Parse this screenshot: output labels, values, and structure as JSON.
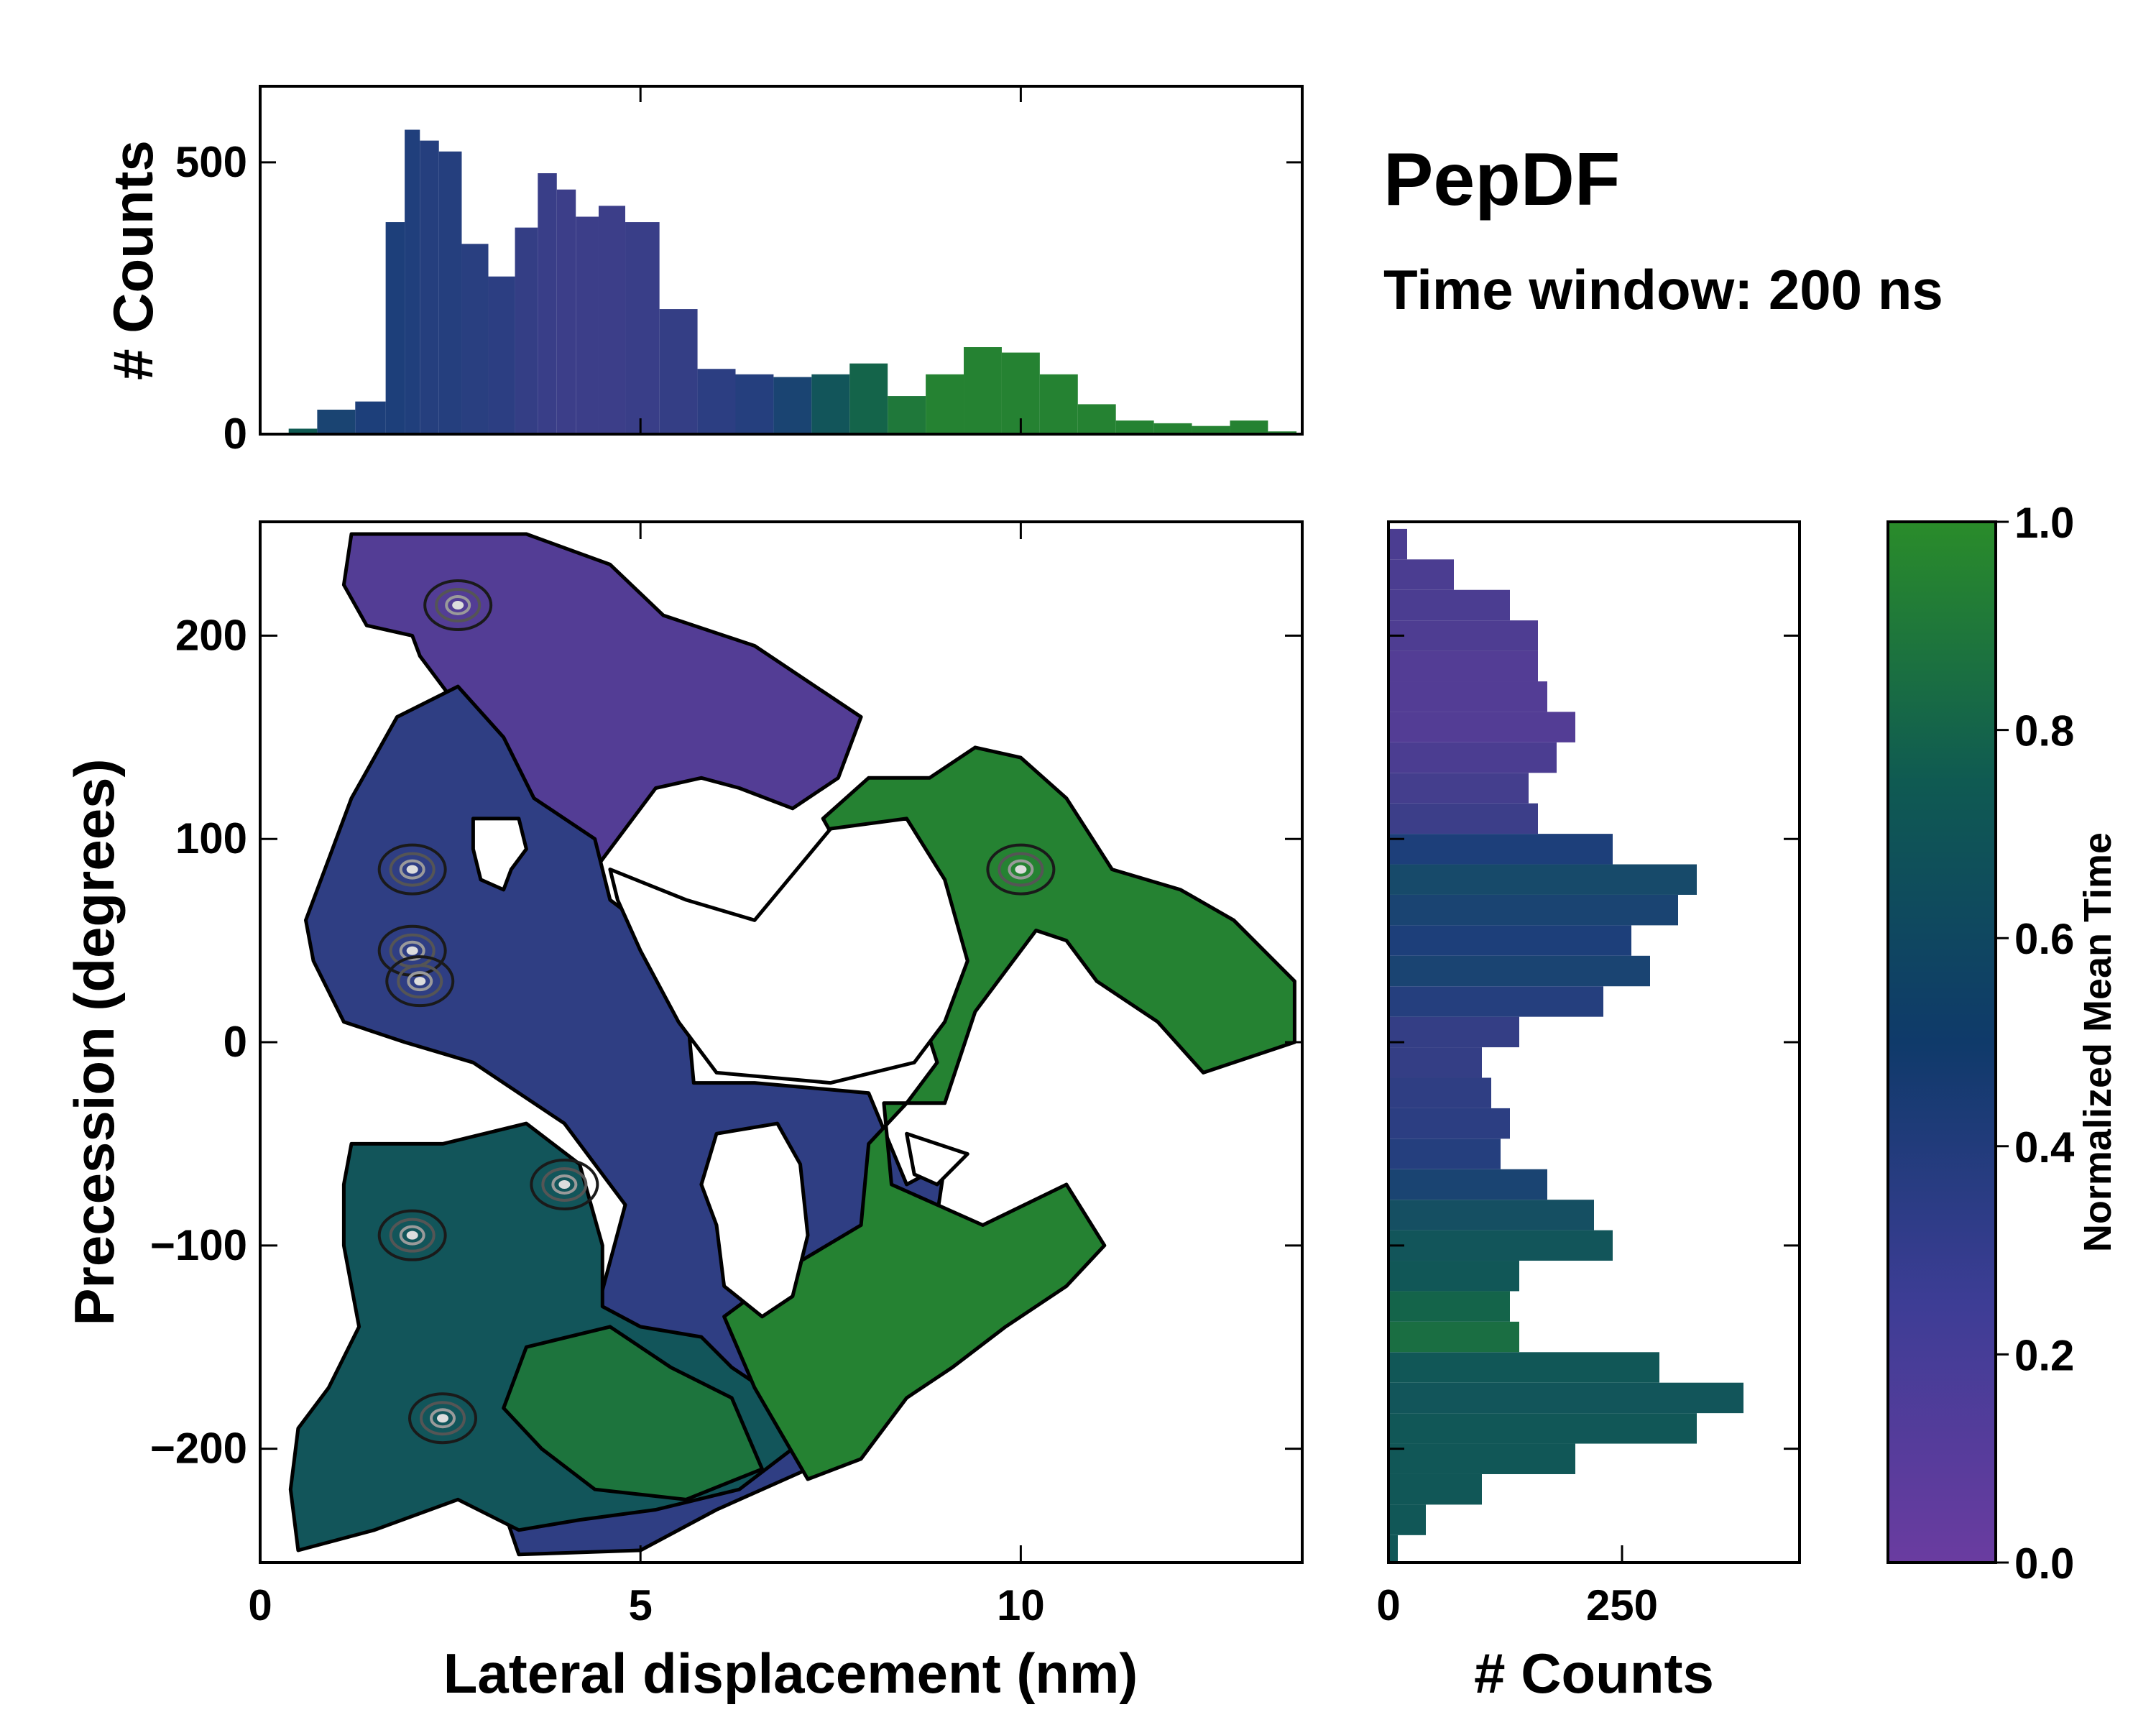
{
  "colors": {
    "purple": "#6a3ca0",
    "blue": "#1d3f7a",
    "teal": "#0f5a52",
    "green": "#2a8c2a"
  },
  "header": {
    "title": "PepDF",
    "subtitle": "Time window: 200 ns"
  },
  "chart_data": [
    {
      "type": "bar",
      "name": "top-histogram",
      "ylabel": "# Counts",
      "xlim": [
        0,
        13.7
      ],
      "ylim": [
        0,
        640
      ],
      "x_ticks": [
        0,
        5,
        10
      ],
      "y_ticks": [
        0,
        500
      ],
      "y_tick_labels": [
        "0",
        "500"
      ],
      "x": [
        0.5,
        1.0,
        1.5,
        1.8,
        2.0,
        2.2,
        2.5,
        2.8,
        3.2,
        3.5,
        3.8,
        4.0,
        4.3,
        4.6,
        5.0,
        5.5,
        6.0,
        6.5,
        7.0,
        7.5,
        8.0,
        8.5,
        9.0,
        9.5,
        10.0,
        10.5,
        11.0,
        11.5,
        12.0,
        12.5,
        13.0,
        13.5
      ],
      "values": [
        10,
        45,
        60,
        390,
        560,
        540,
        520,
        350,
        290,
        380,
        480,
        450,
        400,
        420,
        390,
        230,
        120,
        110,
        105,
        110,
        130,
        70,
        110,
        160,
        150,
        110,
        55,
        25,
        20,
        15,
        25,
        5
      ],
      "normalized_time": [
        0.75,
        0.55,
        0.5,
        0.5,
        0.48,
        0.45,
        0.45,
        0.42,
        0.4,
        0.35,
        0.32,
        0.3,
        0.3,
        0.3,
        0.32,
        0.35,
        0.4,
        0.45,
        0.55,
        0.7,
        0.8,
        0.9,
        0.95,
        0.95,
        0.95,
        0.95,
        0.95,
        0.95,
        0.95,
        0.95,
        0.95,
        0.95
      ]
    },
    {
      "type": "heatmap",
      "name": "main-pmf",
      "xlabel": "Lateral displacement (nm)",
      "ylabel": "Precession (degrees)",
      "xlim": [
        0,
        13.7
      ],
      "ylim": [
        -256,
        256
      ],
      "x_ticks": [
        0,
        5,
        10
      ],
      "y_ticks": [
        -200,
        -100,
        0,
        100,
        200
      ],
      "y_tick_labels": [
        "−200",
        "−100",
        "0",
        "100",
        "200"
      ],
      "regions": [
        {
          "name": "upper-left-purple",
          "normalized_time": 0.15,
          "polygon": [
            [
              1.2,
              250
            ],
            [
              2.5,
              250
            ],
            [
              3.5,
              250
            ],
            [
              4.6,
              235
            ],
            [
              5.3,
              210
            ],
            [
              6.5,
              195
            ],
            [
              7.9,
              160
            ],
            [
              7.6,
              130
            ],
            [
              7.0,
              115
            ],
            [
              6.3,
              125
            ],
            [
              5.8,
              130
            ],
            [
              5.2,
              125
            ],
            [
              4.7,
              100
            ],
            [
              4.4,
              85
            ],
            [
              4.0,
              70
            ],
            [
              3.6,
              65
            ],
            [
              3.1,
              105
            ],
            [
              3.0,
              140
            ],
            [
              2.5,
              170
            ],
            [
              2.1,
              190
            ],
            [
              2.0,
              200
            ],
            [
              1.4,
              205
            ],
            [
              1.1,
              225
            ]
          ]
        },
        {
          "name": "left-blue-band",
          "normalized_time": 0.38,
          "polygon": [
            [
              1.8,
              160
            ],
            [
              2.6,
              175
            ],
            [
              3.2,
              150
            ],
            [
              3.6,
              120
            ],
            [
              4.4,
              100
            ],
            [
              4.6,
              70
            ],
            [
              5.3,
              50
            ],
            [
              5.6,
              20
            ],
            [
              5.7,
              -20
            ],
            [
              6.5,
              -20
            ],
            [
              8.0,
              -25
            ],
            [
              8.5,
              -70
            ],
            [
              9.0,
              -60
            ],
            [
              8.8,
              -110
            ],
            [
              8.9,
              -150
            ],
            [
              8.5,
              -175
            ],
            [
              7.5,
              -205
            ],
            [
              6.0,
              -230
            ],
            [
              5.0,
              -250
            ],
            [
              3.4,
              -252
            ],
            [
              3.2,
              -230
            ],
            [
              3.8,
              -210
            ],
            [
              4.3,
              -150
            ],
            [
              4.8,
              -80
            ],
            [
              4.0,
              -40
            ],
            [
              2.8,
              -10
            ],
            [
              1.9,
              0
            ],
            [
              1.1,
              10
            ],
            [
              0.7,
              40
            ],
            [
              0.6,
              60
            ],
            [
              0.9,
              90
            ],
            [
              1.2,
              120
            ],
            [
              1.5,
              140
            ]
          ]
        },
        {
          "name": "lower-left-teal",
          "normalized_time": 0.7,
          "polygon": [
            [
              1.2,
              -50
            ],
            [
              2.4,
              -50
            ],
            [
              3.5,
              -40
            ],
            [
              4.2,
              -60
            ],
            [
              4.5,
              -100
            ],
            [
              4.5,
              -130
            ],
            [
              5.0,
              -140
            ],
            [
              5.8,
              -145
            ],
            [
              6.2,
              -160
            ],
            [
              6.8,
              -175
            ],
            [
              7.0,
              -200
            ],
            [
              6.3,
              -220
            ],
            [
              5.2,
              -230
            ],
            [
              4.2,
              -235
            ],
            [
              3.4,
              -240
            ],
            [
              2.6,
              -225
            ],
            [
              1.5,
              -240
            ],
            [
              0.5,
              -250
            ],
            [
              0.4,
              -220
            ],
            [
              0.5,
              -190
            ],
            [
              0.9,
              -170
            ],
            [
              1.3,
              -140
            ],
            [
              1.1,
              -100
            ],
            [
              1.1,
              -70
            ]
          ]
        },
        {
          "name": "right-green-island",
          "normalized_time": 0.95,
          "polygon": [
            [
              8.0,
              130
            ],
            [
              8.8,
              130
            ],
            [
              9.4,
              145
            ],
            [
              10.0,
              140
            ],
            [
              10.6,
              120
            ],
            [
              11.2,
              85
            ],
            [
              12.1,
              75
            ],
            [
              12.8,
              60
            ],
            [
              13.6,
              30
            ],
            [
              13.6,
              0
            ],
            [
              12.4,
              -15
            ],
            [
              11.8,
              10
            ],
            [
              11.0,
              30
            ],
            [
              10.6,
              50
            ],
            [
              10.2,
              55
            ],
            [
              9.8,
              35
            ],
            [
              9.4,
              15
            ],
            [
              9.0,
              -30
            ],
            [
              8.2,
              -30
            ],
            [
              8.3,
              -70
            ],
            [
              9.5,
              -90
            ],
            [
              10.6,
              -70
            ],
            [
              11.1,
              -100
            ],
            [
              10.6,
              -120
            ],
            [
              9.8,
              -140
            ],
            [
              9.1,
              -160
            ],
            [
              8.5,
              -175
            ],
            [
              7.9,
              -205
            ],
            [
              7.2,
              -215
            ],
            [
              6.5,
              -170
            ],
            [
              6.1,
              -135
            ],
            [
              7.0,
              -110
            ],
            [
              7.9,
              -90
            ],
            [
              8.0,
              -50
            ],
            [
              8.5,
              -30
            ],
            [
              8.9,
              -10
            ],
            [
              8.6,
              25
            ],
            [
              8.3,
              60
            ],
            [
              7.7,
              90
            ],
            [
              7.4,
              110
            ]
          ]
        },
        {
          "name": "lower-green-patch",
          "normalized_time": 0.88,
          "polygon": [
            [
              3.5,
              -150
            ],
            [
              4.6,
              -140
            ],
            [
              5.4,
              -160
            ],
            [
              6.2,
              -175
            ],
            [
              6.6,
              -210
            ],
            [
              5.6,
              -225
            ],
            [
              4.4,
              -220
            ],
            [
              3.7,
              -200
            ],
            [
              3.2,
              -180
            ]
          ]
        }
      ],
      "holes": [
        [
          [
            2.8,
            110
          ],
          [
            3.4,
            110
          ],
          [
            3.5,
            95
          ],
          [
            3.3,
            85
          ],
          [
            3.2,
            75
          ],
          [
            2.9,
            80
          ],
          [
            2.8,
            95
          ]
        ],
        [
          [
            4.6,
            85
          ],
          [
            5.6,
            70
          ],
          [
            6.5,
            60
          ],
          [
            7.5,
            105
          ],
          [
            8.5,
            110
          ],
          [
            9.0,
            80
          ],
          [
            9.3,
            40
          ],
          [
            9.0,
            10
          ],
          [
            8.6,
            -10
          ],
          [
            7.5,
            -20
          ],
          [
            6.0,
            -15
          ],
          [
            5.5,
            10
          ],
          [
            5.0,
            45
          ],
          [
            4.7,
            70
          ]
        ],
        [
          [
            6.0,
            -45
          ],
          [
            6.8,
            -40
          ],
          [
            7.1,
            -60
          ],
          [
            7.2,
            -95
          ],
          [
            7.0,
            -125
          ],
          [
            6.6,
            -135
          ],
          [
            6.1,
            -120
          ],
          [
            6.0,
            -90
          ],
          [
            5.8,
            -70
          ]
        ],
        [
          [
            8.5,
            -45
          ],
          [
            9.3,
            -55
          ],
          [
            8.9,
            -70
          ],
          [
            8.6,
            -65
          ]
        ]
      ],
      "minima": [
        [
          2.0,
          85
        ],
        [
          2.0,
          45
        ],
        [
          2.1,
          30
        ],
        [
          2.4,
          -185
        ],
        [
          2.6,
          215
        ],
        [
          10.0,
          85
        ],
        [
          4.0,
          -70
        ],
        [
          2.0,
          -95
        ]
      ]
    },
    {
      "type": "bar",
      "orientation": "horizontal",
      "name": "right-histogram",
      "xlabel": "# Counts",
      "xlim": [
        0,
        440
      ],
      "x_ticks": [
        0,
        250
      ],
      "x_tick_labels": [
        "0",
        "250"
      ],
      "ylim": [
        -256,
        256
      ],
      "y": [
        -250,
        -235,
        -220,
        -205,
        -190,
        -175,
        -160,
        -145,
        -130,
        -115,
        -100,
        -85,
        -70,
        -55,
        -40,
        -25,
        -10,
        5,
        20,
        35,
        50,
        65,
        80,
        95,
        110,
        125,
        140,
        155,
        170,
        185,
        200,
        215,
        230,
        245
      ],
      "values": [
        10,
        40,
        100,
        200,
        330,
        380,
        290,
        140,
        130,
        140,
        240,
        220,
        170,
        120,
        130,
        110,
        100,
        140,
        230,
        280,
        260,
        310,
        330,
        240,
        160,
        150,
        180,
        200,
        170,
        160,
        160,
        130,
        70,
        20
      ],
      "normalized_time": [
        0.72,
        0.72,
        0.72,
        0.72,
        0.72,
        0.7,
        0.72,
        0.85,
        0.8,
        0.72,
        0.7,
        0.65,
        0.55,
        0.45,
        0.4,
        0.38,
        0.35,
        0.35,
        0.45,
        0.55,
        0.5,
        0.55,
        0.6,
        0.5,
        0.3,
        0.25,
        0.2,
        0.15,
        0.15,
        0.15,
        0.18,
        0.2,
        0.2,
        0.2
      ]
    },
    {
      "type": "colorbar",
      "name": "colorbar",
      "label": "Normalized Mean Time",
      "range": [
        0.0,
        1.0
      ],
      "ticks": [
        0.0,
        0.2,
        0.4,
        0.6,
        0.8,
        1.0
      ],
      "tick_labels": [
        "0.0",
        "0.2",
        "0.4",
        "0.6",
        "0.8",
        "1.0"
      ]
    }
  ]
}
